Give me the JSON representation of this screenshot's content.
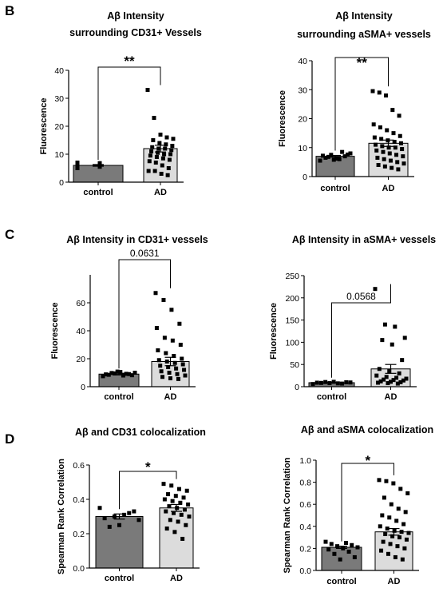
{
  "panels": {
    "B": "B",
    "C": "C",
    "D": "D"
  },
  "chart_data": [
    {
      "type": "bar",
      "panel": "B",
      "title": [
        "Aβ Intensity",
        "surrounding CD31+ Vessels"
      ],
      "ylabel": "Fluorescence",
      "xlabel": "",
      "categories": [
        "control",
        "AD"
      ],
      "values": [
        6,
        12
      ],
      "errors": [
        0.3,
        1.2
      ],
      "ylim": [
        0,
        40
      ],
      "yticks": [
        0,
        10,
        20,
        30,
        40
      ],
      "ytick_labels": [
        "0",
        "10",
        "20",
        "30",
        "40"
      ],
      "significance": "**",
      "points": [
        [
          5,
          5.5,
          6,
          6.5,
          5.8,
          6.2,
          5.2,
          6.8,
          6,
          5.6,
          7,
          6.3,
          5.4,
          6.7
        ],
        [
          33,
          23,
          17,
          16,
          15.5,
          15,
          14,
          13.5,
          13,
          12.5,
          12,
          12,
          11.5,
          11,
          10.5,
          10,
          10,
          9.5,
          9,
          8.5,
          8,
          7.5,
          7,
          6,
          5,
          4,
          4,
          3,
          2.5
        ]
      ],
      "bar_colors": [
        "#7a7a7a",
        "#dcdcdc"
      ]
    },
    {
      "type": "bar",
      "panel": "B",
      "title": [
        "Aβ Intensity",
        "surrounding aSMA+ vessels"
      ],
      "ylabel": "Fluorescence",
      "xlabel": "",
      "categories": [
        "control",
        "AD"
      ],
      "values": [
        7,
        11.5
      ],
      "errors": [
        0.3,
        1.1
      ],
      "ylim": [
        0,
        40
      ],
      "yticks": [
        0,
        10,
        20,
        30,
        40
      ],
      "ytick_labels": [
        "0",
        "10",
        "20",
        "30",
        "40"
      ],
      "significance": "**",
      "points": [
        [
          5.5,
          6,
          6.5,
          7,
          7.5,
          8,
          6.2,
          7.2,
          8.5,
          6.8,
          7.6,
          5.8
        ],
        [
          29.5,
          29,
          28,
          23,
          21,
          18,
          17,
          16,
          15,
          14,
          13.5,
          13,
          12.5,
          12,
          11.5,
          11,
          10.5,
          10,
          10,
          9.5,
          9,
          8.5,
          8,
          7.5,
          7,
          6.5,
          6,
          5.5,
          5,
          4.5,
          4,
          3.5,
          3,
          2.5
        ]
      ],
      "bar_colors": [
        "#7a7a7a",
        "#dcdcdc"
      ]
    },
    {
      "type": "bar",
      "panel": "C",
      "title": [
        "Aβ Intensity in CD31+ vessels"
      ],
      "ylabel": "Fluorescence",
      "xlabel": "",
      "categories": [
        "control",
        "AD"
      ],
      "values": [
        9,
        18
      ],
      "errors": [
        0.6,
        3
      ],
      "ylim": [
        0,
        80
      ],
      "yticks": [
        0,
        20,
        40,
        60
      ],
      "ytick_labels": [
        "0",
        "20",
        "40",
        "60"
      ],
      "significance": "0.0631",
      "points": [
        [
          7.5,
          8,
          8.5,
          9,
          9.5,
          10,
          10.5,
          8.8,
          9.2,
          9.8,
          8.2,
          10.8
        ],
        [
          67,
          62,
          55,
          45,
          42,
          35,
          33,
          30,
          26,
          24,
          22,
          20,
          19,
          18,
          17,
          16,
          15,
          14,
          13,
          12,
          11,
          10,
          9,
          8,
          7,
          6,
          5.5
        ]
      ],
      "bar_colors": [
        "#7a7a7a",
        "#dcdcdc"
      ]
    },
    {
      "type": "bar",
      "panel": "C",
      "title": [
        "Aβ Intensity in aSMA+ vessels"
      ],
      "ylabel": "Fluorescence",
      "xlabel": "",
      "categories": [
        "control",
        "AD"
      ],
      "values": [
        9,
        40
      ],
      "errors": [
        0.5,
        10
      ],
      "ylim": [
        0,
        250
      ],
      "yticks": [
        0,
        50,
        100,
        150,
        200,
        250
      ],
      "ytick_labels": [
        "0",
        "50",
        "100",
        "150",
        "200",
        "250"
      ],
      "significance": "0.0568",
      "points": [
        [
          6,
          7,
          8,
          9,
          10,
          11,
          8.5,
          9.5,
          7.5,
          10.5
        ],
        [
          220,
          140,
          135,
          110,
          105,
          95,
          60,
          40,
          35,
          30,
          25,
          22,
          20,
          18,
          16,
          15,
          14,
          12,
          11,
          10,
          9,
          8,
          7
        ]
      ],
      "bar_colors": [
        "#7a7a7a",
        "#dcdcdc"
      ]
    },
    {
      "type": "bar",
      "panel": "D",
      "title": [
        "Aβ and CD31 colocalization"
      ],
      "ylabel": "Spearman Rank Correlation",
      "xlabel": "",
      "categories": [
        "control",
        "AD"
      ],
      "values": [
        0.3,
        0.35
      ],
      "errors": [
        0.015,
        0.02
      ],
      "ylim": [
        0,
        0.6
      ],
      "yticks": [
        0,
        0.2,
        0.4,
        0.6
      ],
      "ytick_labels": [
        "0.0",
        "0.2",
        "0.4",
        "0.6"
      ],
      "significance": "*",
      "points": [
        [
          0.35,
          0.33,
          0.31,
          0.3,
          0.29,
          0.28,
          0.32,
          0.25,
          0.24
        ],
        [
          0.49,
          0.48,
          0.46,
          0.45,
          0.43,
          0.42,
          0.41,
          0.4,
          0.39,
          0.38,
          0.37,
          0.36,
          0.35,
          0.34,
          0.33,
          0.32,
          0.31,
          0.3,
          0.28,
          0.27,
          0.25,
          0.23,
          0.21,
          0.17
        ]
      ],
      "bar_colors": [
        "#7a7a7a",
        "#dcdcdc"
      ]
    },
    {
      "type": "bar",
      "panel": "D",
      "title": [
        "Aβ and aSMA colocalization"
      ],
      "ylabel": "Spearman Rank Correlation",
      "xlabel": "",
      "categories": [
        "control",
        "AD"
      ],
      "values": [
        0.21,
        0.35
      ],
      "errors": [
        0.01,
        0.03
      ],
      "ylim": [
        0,
        1.0
      ],
      "yticks": [
        0,
        0.2,
        0.4,
        0.6,
        0.8,
        1.0
      ],
      "ytick_labels": [
        "0.0",
        "0.2",
        "0.4",
        "0.6",
        "0.8",
        "1.0"
      ],
      "significance": "*",
      "points": [
        [
          0.26,
          0.25,
          0.24,
          0.23,
          0.22,
          0.21,
          0.2,
          0.19,
          0.17,
          0.15,
          0.12,
          0.1
        ],
        [
          0.82,
          0.81,
          0.79,
          0.74,
          0.7,
          0.66,
          0.6,
          0.56,
          0.53,
          0.5,
          0.48,
          0.45,
          0.42,
          0.4,
          0.38,
          0.36,
          0.35,
          0.34,
          0.33,
          0.31,
          0.3,
          0.28,
          0.26,
          0.24,
          0.22,
          0.2,
          0.18,
          0.15,
          0.12,
          0.1
        ]
      ],
      "bar_colors": [
        "#7a7a7a",
        "#dcdcdc"
      ]
    }
  ]
}
